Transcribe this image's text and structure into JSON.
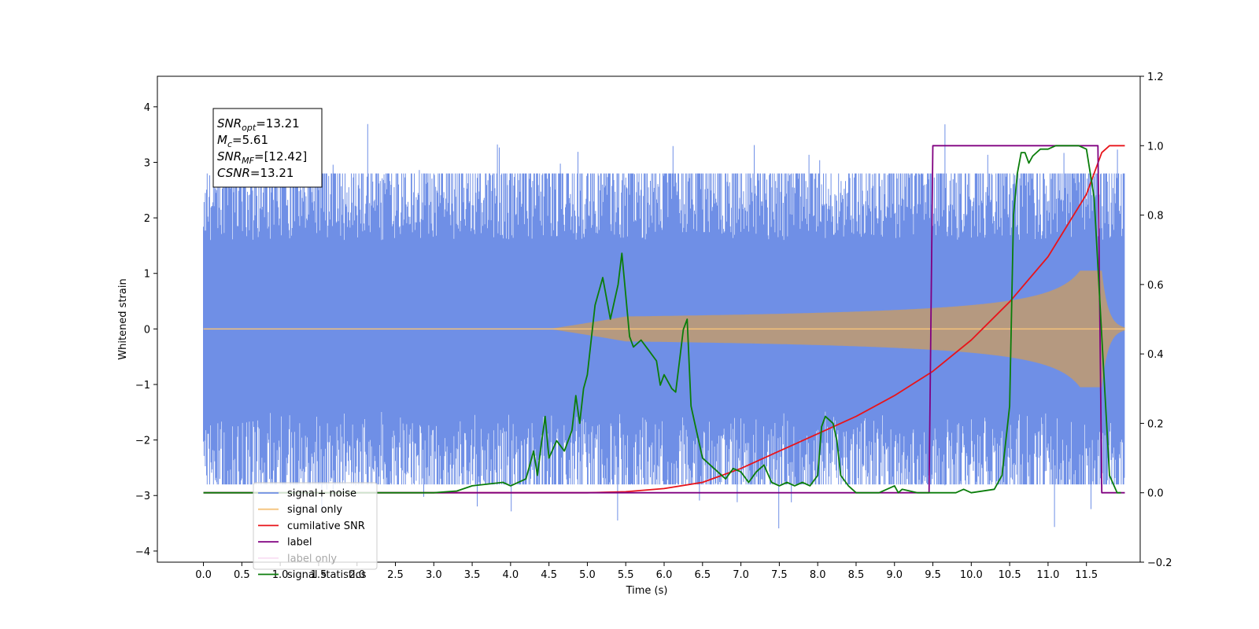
{
  "chart_data": {
    "type": "line",
    "xlabel": "Time (s)",
    "ylabel": "Whitened strain",
    "xlim": [
      -0.6,
      12.2
    ],
    "ylim": [
      -4.2,
      4.55
    ],
    "y2lim": [
      -0.2,
      1.2
    ],
    "x_ticks": [
      "0.0",
      "0.5",
      "1.0",
      "1.5",
      "2.0",
      "2.5",
      "3.0",
      "3.5",
      "4.0",
      "4.5",
      "5.0",
      "5.5",
      "6.0",
      "6.5",
      "7.0",
      "7.5",
      "8.0",
      "8.5",
      "9.0",
      "9.5",
      "10.0",
      "10.5",
      "11.0",
      "11.5"
    ],
    "y_ticks": [
      "−4",
      "−3",
      "−2",
      "−1",
      "0",
      "1",
      "2",
      "3",
      "4"
    ],
    "y2_ticks": [
      "−0.2",
      "0.0",
      "0.2",
      "0.4",
      "0.6",
      "0.8",
      "1.0",
      "1.2"
    ],
    "legend_placement": "lower-left",
    "annotation": {
      "lines": [
        {
          "sym": "SNR",
          "sub": "opt",
          "value": "=13.21"
        },
        {
          "sym": "M",
          "sub": "c",
          "value": "=5.61"
        },
        {
          "sym": "SNR",
          "sub": "MF",
          "value": "=[12.42]"
        },
        {
          "sym": "CSNR",
          "sub": "",
          "value": "=13.21"
        }
      ]
    },
    "series": [
      {
        "name": "signal+ noise",
        "color": "#6f8fe6",
        "axis": "left",
        "kind": "noise",
        "x_range": [
          0.0,
          12.0
        ],
        "band": [
          -2.8,
          2.8
        ]
      },
      {
        "name": "signal only",
        "color": "#f5c27a",
        "axis": "left",
        "kind": "chirp",
        "x_range": [
          0.0,
          12.0
        ],
        "peak_time": 11.7,
        "peak_amp": 1.05
      },
      {
        "name": "cumilative SNR",
        "color": "#e8141a",
        "axis": "right",
        "x": [
          0.0,
          5.0,
          5.5,
          6.0,
          6.5,
          7.0,
          7.5,
          8.0,
          8.5,
          9.0,
          9.5,
          10.0,
          10.5,
          11.0,
          11.5,
          11.7,
          11.8,
          12.0
        ],
        "values": [
          0.0,
          0.0,
          0.003,
          0.012,
          0.03,
          0.07,
          0.12,
          0.17,
          0.22,
          0.28,
          0.35,
          0.44,
          0.55,
          0.68,
          0.86,
          0.98,
          1.0,
          1.0
        ]
      },
      {
        "name": "label",
        "color": "#800080",
        "axis": "right",
        "x": [
          0.0,
          9.45,
          9.5,
          11.65,
          11.7,
          12.0
        ],
        "values": [
          0.0,
          0.0,
          1.0,
          1.0,
          0.0,
          0.0
        ]
      },
      {
        "name": "label only",
        "color": "#f0a8e0",
        "axis": "right",
        "hidden": true,
        "x": [
          0.0,
          12.0
        ],
        "values": [
          0.0,
          0.0
        ]
      },
      {
        "name": "signal statistics",
        "color": "#0a7d0a",
        "axis": "right",
        "x": [
          0.0,
          3.0,
          3.3,
          3.5,
          3.9,
          4.0,
          4.2,
          4.3,
          4.35,
          4.4,
          4.45,
          4.5,
          4.6,
          4.7,
          4.8,
          4.85,
          4.9,
          4.95,
          5.0,
          5.1,
          5.2,
          5.3,
          5.4,
          5.45,
          5.55,
          5.6,
          5.7,
          5.8,
          5.9,
          5.95,
          6.0,
          6.1,
          6.15,
          6.25,
          6.3,
          6.35,
          6.4,
          6.5,
          6.7,
          6.8,
          6.9,
          7.0,
          7.1,
          7.2,
          7.3,
          7.4,
          7.5,
          7.6,
          7.7,
          7.8,
          7.9,
          8.0,
          8.05,
          8.1,
          8.2,
          8.25,
          8.3,
          8.4,
          8.5,
          8.8,
          9.0,
          9.05,
          9.1,
          9.3,
          9.5,
          9.8,
          9.9,
          10.0,
          10.3,
          10.4,
          10.5,
          10.55,
          10.6,
          10.65,
          10.7,
          10.75,
          10.8,
          10.9,
          11.0,
          11.1,
          11.2,
          11.4,
          11.5,
          11.6,
          11.7,
          11.8,
          11.9,
          11.95
        ],
        "values": [
          0.0,
          0.0,
          0.005,
          0.02,
          0.03,
          0.02,
          0.04,
          0.12,
          0.05,
          0.14,
          0.22,
          0.1,
          0.15,
          0.12,
          0.18,
          0.28,
          0.2,
          0.3,
          0.34,
          0.54,
          0.62,
          0.5,
          0.6,
          0.69,
          0.45,
          0.42,
          0.44,
          0.41,
          0.38,
          0.31,
          0.34,
          0.3,
          0.29,
          0.47,
          0.5,
          0.25,
          0.2,
          0.1,
          0.06,
          0.04,
          0.07,
          0.06,
          0.03,
          0.06,
          0.08,
          0.03,
          0.02,
          0.03,
          0.02,
          0.03,
          0.02,
          0.05,
          0.19,
          0.22,
          0.2,
          0.15,
          0.05,
          0.02,
          0.0,
          0.0,
          0.02,
          0.0,
          0.01,
          0.0,
          0.0,
          0.0,
          0.01,
          0.0,
          0.01,
          0.05,
          0.25,
          0.8,
          0.92,
          0.98,
          0.98,
          0.95,
          0.97,
          0.99,
          0.99,
          1.0,
          1.0,
          1.0,
          0.99,
          0.85,
          0.45,
          0.05,
          0.0,
          0.0
        ]
      }
    ]
  }
}
